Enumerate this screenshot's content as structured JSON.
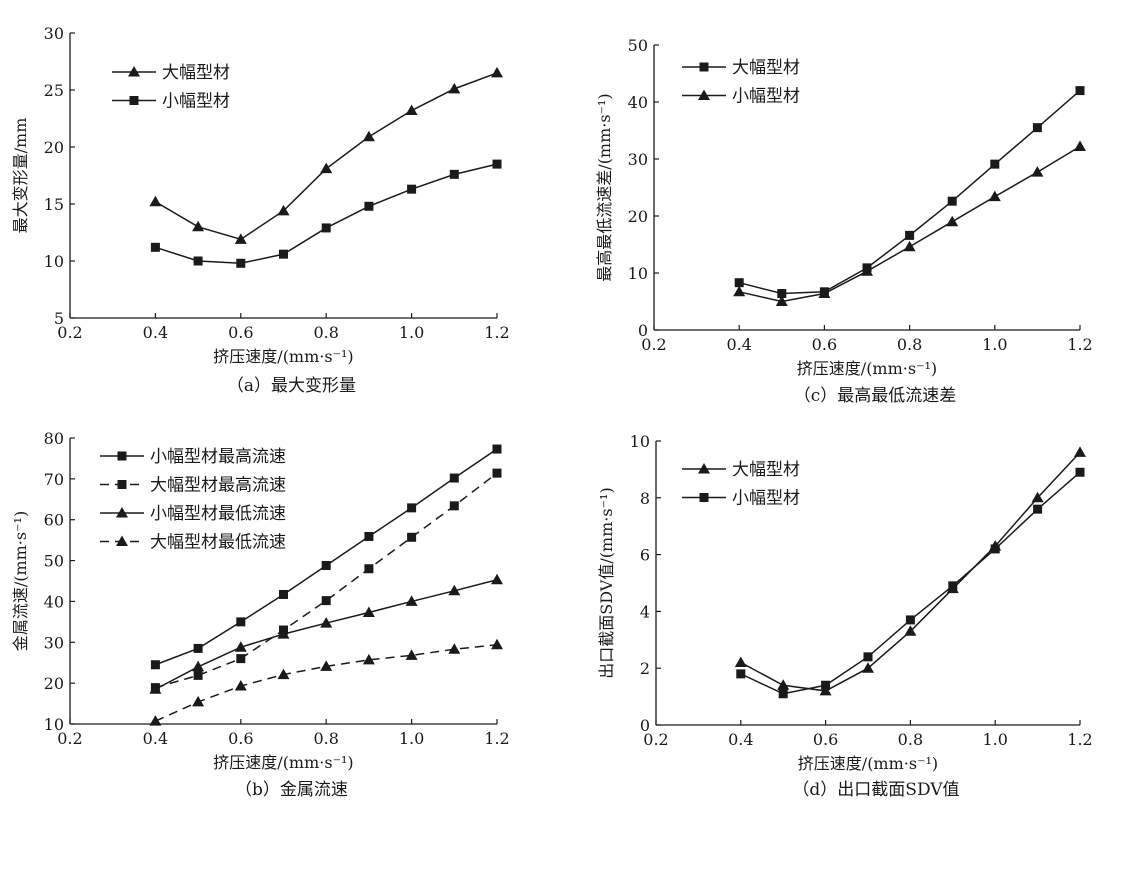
{
  "chart_data": [
    {
      "id": "a",
      "type": "line",
      "caption": "（a）最大变形量",
      "xlabel": "挤压速度/(mm·s⁻¹)",
      "ylabel": "最大变形量/mm",
      "xlim": [
        0.2,
        1.2
      ],
      "ylim": [
        5,
        30
      ],
      "xticks": [
        "0.2",
        "0.4",
        "0.6",
        "0.8",
        "1.0",
        "1.2"
      ],
      "yticks": [
        "5",
        "10",
        "15",
        "20",
        "25",
        "30"
      ],
      "grid": false,
      "legend_position": "top-left",
      "x": [
        0.4,
        0.5,
        0.6,
        0.7,
        0.8,
        0.9,
        1.0,
        1.1,
        1.2
      ],
      "series": [
        {
          "name": "大幅型材",
          "marker": "triangle",
          "dash": "solid",
          "values": [
            15.2,
            13.0,
            11.9,
            14.4,
            18.1,
            20.9,
            23.2,
            25.1,
            26.5
          ]
        },
        {
          "name": "小幅型材",
          "marker": "square",
          "dash": "solid",
          "values": [
            11.2,
            10.0,
            9.8,
            10.6,
            12.9,
            14.8,
            16.3,
            17.6,
            18.5
          ]
        }
      ]
    },
    {
      "id": "b",
      "type": "line",
      "caption": "（b）金属流速",
      "xlabel": "挤压速度/(mm·s⁻¹)",
      "ylabel": "金属流速/(mm·s⁻¹)",
      "xlim": [
        0.2,
        1.2
      ],
      "ylim": [
        10,
        80
      ],
      "xticks": [
        "0.2",
        "0.4",
        "0.6",
        "0.8",
        "1.0",
        "1.2"
      ],
      "yticks": [
        "10",
        "20",
        "30",
        "40",
        "50",
        "60",
        "70",
        "80"
      ],
      "grid": false,
      "legend_position": "top-left",
      "x": [
        0.4,
        0.5,
        0.6,
        0.7,
        0.8,
        0.9,
        1.0,
        1.1,
        1.2
      ],
      "series": [
        {
          "name": "小幅型材最高流速",
          "marker": "square",
          "dash": "solid",
          "values": [
            24.5,
            28.5,
            35.0,
            41.7,
            48.8,
            55.9,
            62.9,
            70.2,
            77.3
          ]
        },
        {
          "name": "大幅型材最高流速",
          "marker": "square",
          "dash": "dashed",
          "values": [
            18.9,
            21.9,
            26.0,
            33.0,
            40.2,
            48.0,
            55.7,
            63.4,
            71.4
          ]
        },
        {
          "name": "小幅型材最低流速",
          "marker": "triangle",
          "dash": "solid",
          "values": [
            18.5,
            24.0,
            28.8,
            32.0,
            34.7,
            37.3,
            40.0,
            42.6,
            45.3
          ]
        },
        {
          "name": "大幅型材最低流速",
          "marker": "triangle",
          "dash": "dashed",
          "values": [
            10.7,
            15.4,
            19.3,
            22.1,
            24.1,
            25.7,
            26.8,
            28.3,
            29.4
          ]
        }
      ]
    },
    {
      "id": "c",
      "type": "line",
      "caption": "（c）最高最低流速差",
      "xlabel": "挤压速度/(mm·s⁻¹)",
      "ylabel": "最高最低流速差/(mm·s⁻¹)",
      "xlim": [
        0.2,
        1.2
      ],
      "ylim": [
        0,
        50
      ],
      "xticks": [
        "0.2",
        "0.4",
        "0.6",
        "0.8",
        "1.0",
        "1.2"
      ],
      "yticks": [
        "0",
        "10",
        "20",
        "30",
        "40",
        "50"
      ],
      "grid": false,
      "legend_position": "top-left",
      "x": [
        0.4,
        0.5,
        0.6,
        0.7,
        0.8,
        0.9,
        1.0,
        1.1,
        1.2
      ],
      "series": [
        {
          "name": "大幅型材",
          "marker": "square",
          "dash": "solid",
          "values": [
            8.3,
            6.4,
            6.7,
            10.9,
            16.6,
            22.6,
            29.1,
            35.5,
            42.0
          ]
        },
        {
          "name": "小幅型材",
          "marker": "triangle",
          "dash": "solid",
          "values": [
            6.7,
            5.0,
            6.4,
            10.3,
            14.6,
            19.0,
            23.4,
            27.7,
            32.2
          ]
        }
      ]
    },
    {
      "id": "d",
      "type": "line",
      "caption": "（d）出口截面SDV值",
      "xlabel": "挤压速度/(mm·s⁻¹)",
      "ylabel": "出口截面SDV值/(mm·s⁻¹)",
      "xlim": [
        0.2,
        1.2
      ],
      "ylim": [
        0,
        10
      ],
      "xticks": [
        "0.2",
        "0.4",
        "0.6",
        "0.8",
        "1.0",
        "1.2"
      ],
      "yticks": [
        "0",
        "2",
        "4",
        "6",
        "8",
        "10"
      ],
      "grid": false,
      "legend_position": "top-left",
      "x": [
        0.4,
        0.5,
        0.6,
        0.7,
        0.8,
        0.9,
        1.0,
        1.1,
        1.2
      ],
      "series": [
        {
          "name": "大幅型材",
          "marker": "triangle",
          "dash": "solid",
          "values": [
            2.2,
            1.4,
            1.2,
            2.0,
            3.3,
            4.8,
            6.3,
            8.0,
            9.6
          ]
        },
        {
          "name": "小幅型材",
          "marker": "square",
          "dash": "solid",
          "values": [
            1.8,
            1.1,
            1.4,
            2.4,
            3.7,
            4.9,
            6.2,
            7.6,
            8.9
          ]
        }
      ]
    }
  ]
}
